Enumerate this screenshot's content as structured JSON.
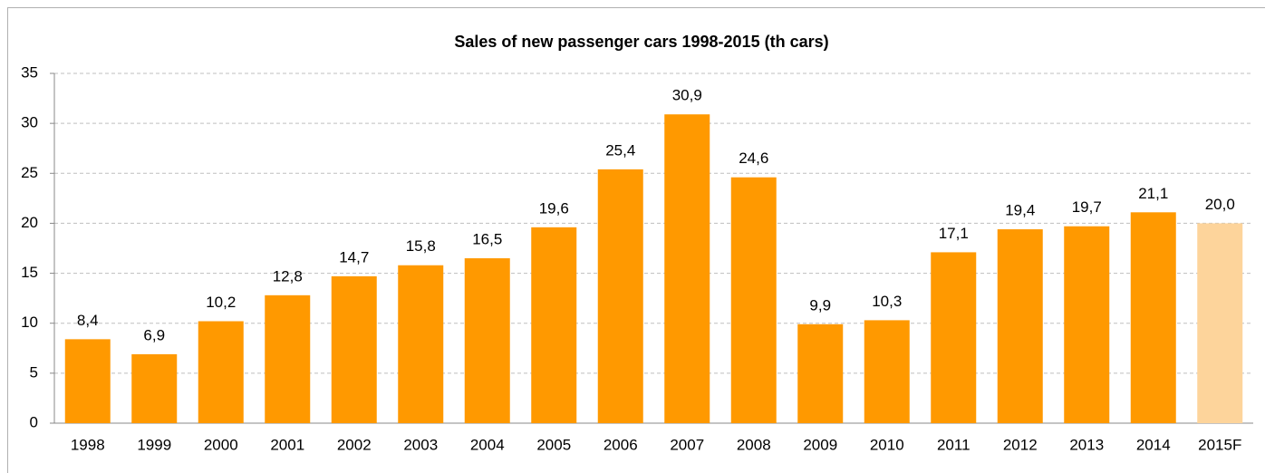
{
  "chart_data": {
    "type": "bar",
    "title": "Sales of new passenger cars 1998-2015 (th cars)",
    "categories": [
      "1998",
      "1999",
      "2000",
      "2001",
      "2002",
      "2003",
      "2004",
      "2005",
      "2006",
      "2007",
      "2008",
      "2009",
      "2010",
      "2011",
      "2012",
      "2013",
      "2014",
      "2015F"
    ],
    "values": [
      8.4,
      6.9,
      10.2,
      12.8,
      14.7,
      15.8,
      16.5,
      19.6,
      25.4,
      30.9,
      24.6,
      9.9,
      10.3,
      17.1,
      19.4,
      19.7,
      21.1,
      20.0
    ],
    "value_labels": [
      "8,4",
      "6,9",
      "10,2",
      "12,8",
      "14,7",
      "15,8",
      "16,5",
      "19,6",
      "25,4",
      "30,9",
      "24,6",
      "9,9",
      "10,3",
      "17,1",
      "19,4",
      "19,7",
      "21,1",
      "20,0"
    ],
    "colors": [
      "#ff9900",
      "#ff9900",
      "#ff9900",
      "#ff9900",
      "#ff9900",
      "#ff9900",
      "#ff9900",
      "#ff9900",
      "#ff9900",
      "#ff9900",
      "#ff9900",
      "#ff9900",
      "#ff9900",
      "#ff9900",
      "#ff9900",
      "#ff9900",
      "#ff9900",
      "#fdd49b"
    ],
    "ylim": [
      0,
      35
    ],
    "yticks": [
      0,
      5,
      10,
      15,
      20,
      25,
      30,
      35
    ],
    "grid": true
  }
}
